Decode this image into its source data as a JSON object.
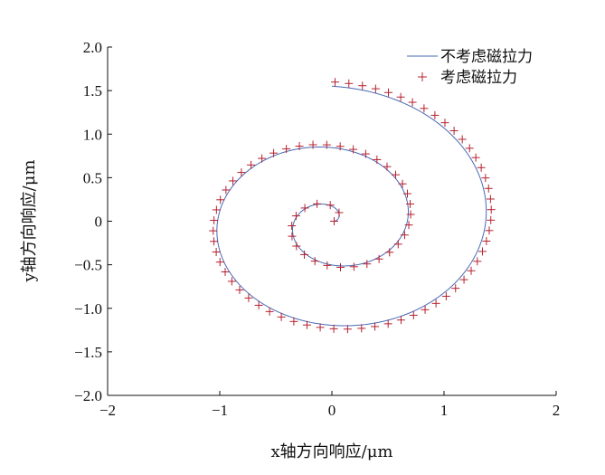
{
  "chart_data": {
    "type": "line",
    "xlabel": "x轴方向响应/μm",
    "ylabel": "y轴方向响应/μm",
    "xlim": [
      -2,
      2
    ],
    "ylim": [
      -2,
      2
    ],
    "x_ticks": [
      "−2",
      "−1",
      "0",
      "1",
      "2"
    ],
    "y_ticks": [
      "−2.0",
      "−1.5",
      "−1.0",
      "−0.5",
      "0",
      "0.5",
      "1.0",
      "1.5",
      "2.0"
    ],
    "x_tick_values": [
      -2,
      -1,
      0,
      1,
      2
    ],
    "y_tick_values": [
      -2,
      -1.5,
      -1,
      -0.5,
      0,
      0.5,
      1,
      1.5,
      2
    ],
    "legend_position": "top-right",
    "grid": false,
    "colors": {
      "line": "#4a6bb5",
      "marker": "#b5202e"
    },
    "series": [
      {
        "name": "不考虑磁拉力",
        "style": "line",
        "spiral": {
          "r_start": 0.02,
          "r_end": 1.55,
          "theta_start_deg": 0,
          "turns": 2.25,
          "direction": "counterclockwise",
          "center": [
            0,
            0
          ]
        }
      },
      {
        "name": "考虑磁拉力",
        "style": "plus-markers",
        "spiral": {
          "r_start": 0.02,
          "r_end": 1.6,
          "theta_start_deg": 0,
          "turns": 2.25,
          "direction": "counterclockwise",
          "center": [
            0,
            0
          ]
        }
      }
    ]
  }
}
